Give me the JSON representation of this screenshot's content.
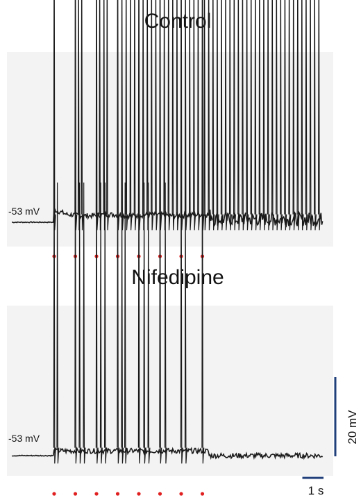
{
  "chart_data": [
    {
      "type": "line",
      "title": "Control",
      "trace_color": "#1a1a1a",
      "panel_background": "#f3f3f3",
      "baseline_label": "-53 mV",
      "baseline_mv": -53,
      "stimulus_marker_color": "#e02020",
      "stimulus_times_s": [
        0,
        1,
        2,
        3,
        4,
        5,
        6,
        7
      ],
      "spikes": [
        {
          "t": 0.0,
          "peak_mv": 36
        },
        {
          "t": 1.0,
          "peak_mv": 36
        },
        {
          "t": 1.15,
          "peak_mv": 20
        },
        {
          "t": 1.3,
          "peak_mv": 20
        },
        {
          "t": 2.0,
          "peak_mv": 36
        },
        {
          "t": 2.15,
          "peak_mv": 20
        },
        {
          "t": 2.35,
          "peak_mv": 20
        },
        {
          "t": 2.5,
          "peak_mv": 20
        },
        {
          "t": 3.0,
          "peak_mv": 36
        },
        {
          "t": 3.2,
          "peak_mv": 20
        },
        {
          "t": 3.4,
          "peak_mv": 20
        },
        {
          "t": 3.6,
          "peak_mv": 20
        },
        {
          "t": 3.8,
          "peak_mv": 20
        },
        {
          "t": 4.0,
          "peak_mv": 36
        },
        {
          "t": 4.2,
          "peak_mv": 20
        },
        {
          "t": 4.4,
          "peak_mv": 20
        },
        {
          "t": 4.6,
          "peak_mv": 20
        },
        {
          "t": 4.8,
          "peak_mv": 20
        },
        {
          "t": 5.0,
          "peak_mv": 36
        },
        {
          "t": 5.2,
          "peak_mv": 20
        },
        {
          "t": 5.4,
          "peak_mv": 20
        },
        {
          "t": 5.6,
          "peak_mv": 20
        },
        {
          "t": 5.8,
          "peak_mv": 20
        },
        {
          "t": 6.0,
          "peak_mv": 36
        },
        {
          "t": 6.2,
          "peak_mv": 20
        },
        {
          "t": 6.4,
          "peak_mv": 20
        },
        {
          "t": 6.6,
          "peak_mv": 20
        },
        {
          "t": 6.8,
          "peak_mv": 20
        },
        {
          "t": 7.0,
          "peak_mv": 36
        }
      ],
      "sustained_firing": {
        "start_s": 7.1,
        "end_s": 12.5,
        "interval_s": 0.2,
        "peak_mv": 20
      },
      "x_range_s": [
        -2,
        12.7
      ]
    },
    {
      "type": "line",
      "title": "Nifedipine",
      "trace_color": "#1a1a1a",
      "panel_background": "#f3f3f3",
      "baseline_label": "-53 mV",
      "baseline_mv": -53,
      "stimulus_marker_color": "#e02020",
      "stimulus_times_s": [
        0,
        1,
        2,
        3,
        4,
        5,
        6,
        7
      ],
      "spikes": [
        {
          "t": 0.0,
          "peak_mv": 36
        },
        {
          "t": 0.15,
          "peak_mv": 16
        },
        {
          "t": 1.0,
          "peak_mv": 36
        },
        {
          "t": 1.2,
          "peak_mv": 16
        },
        {
          "t": 1.4,
          "peak_mv": 16
        },
        {
          "t": 2.0,
          "peak_mv": 36
        },
        {
          "t": 2.2,
          "peak_mv": 16
        },
        {
          "t": 2.4,
          "peak_mv": 16
        },
        {
          "t": 3.0,
          "peak_mv": 36
        },
        {
          "t": 3.2,
          "peak_mv": 16
        },
        {
          "t": 3.35,
          "peak_mv": 16
        },
        {
          "t": 4.0,
          "peak_mv": 36
        },
        {
          "t": 4.25,
          "peak_mv": 16
        },
        {
          "t": 4.45,
          "peak_mv": 16
        },
        {
          "t": 5.0,
          "peak_mv": 36
        },
        {
          "t": 5.25,
          "peak_mv": 16
        },
        {
          "t": 6.0,
          "peak_mv": 36
        },
        {
          "t": 6.2,
          "peak_mv": 16
        },
        {
          "t": 7.0,
          "peak_mv": 36
        }
      ],
      "sustained_firing": null,
      "x_range_s": [
        -2,
        12.7
      ]
    }
  ],
  "scale_bars": {
    "color": "#1f3f7a",
    "vertical": {
      "value_mv": 20,
      "label": "20 mV"
    },
    "horizontal": {
      "value_s": 1,
      "label": "1 s"
    }
  }
}
